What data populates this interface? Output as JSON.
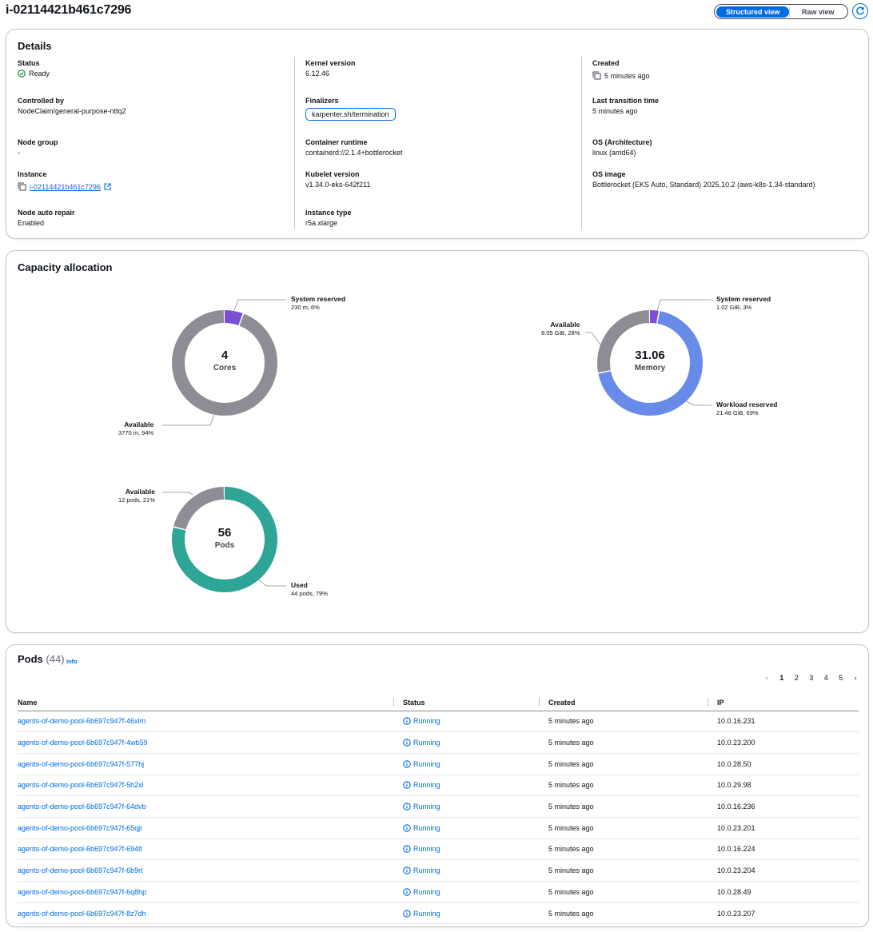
{
  "header": {
    "title": "i-02114421b461c7296",
    "structured_view_label": "Structured view",
    "raw_view_label": "Raw view",
    "refresh_icon": "refresh-icon"
  },
  "details": {
    "title": "Details",
    "status_label": "Status",
    "status_value": "Ready",
    "kernel_label": "Kernel version",
    "kernel_value": "6.12.46",
    "created_label": "Created",
    "created_value": "5 minutes ago",
    "controlled_label": "Controlled by",
    "controlled_value": "NodeClaim/general-purpose-nttq2",
    "finalizers_label": "Finalizers",
    "finalizers_value": "karpenter.sh/termination",
    "last_transition_label": "Last transition time",
    "last_transition_value": "5 minutes ago",
    "node_group_label": "Node group",
    "node_group_value": "-",
    "runtime_label": "Container runtime",
    "runtime_value": "containerd://2.1.4+bottlerocket",
    "os_arch_label": "OS (Architecture)",
    "os_arch_value": "linux (amd64)",
    "instance_label": "Instance",
    "instance_value": "i-02114421b461c7296",
    "kubelet_label": "Kubelet version",
    "kubelet_value": "v1.34.0-eks-642f211",
    "os_image_label": "OS image",
    "os_image_value": "Bottlerocket (EKS Auto, Standard) 2025.10.2 (aws-k8s-1.34-standard)",
    "auto_repair_label": "Node auto repair",
    "auto_repair_value": "Enabled",
    "instance_type_label": "Instance type",
    "instance_type_value": "r5a.xlarge"
  },
  "capacity": {
    "title": "Capacity allocation",
    "cpu": {
      "center_value": "4",
      "center_unit": "Cores",
      "segments": [
        {
          "name": "System reserved",
          "detail": "230 m, 6%",
          "fraction": 0.06,
          "color": "#7d4fd6"
        },
        {
          "name": "Available",
          "detail": "3770 m, 94%",
          "fraction": 0.94,
          "color": "#8d8d95"
        }
      ]
    },
    "memory": {
      "center_value": "31.06",
      "center_unit": "Memory",
      "segments": [
        {
          "name": "System reserved",
          "detail": "1.02 GiB, 3%",
          "fraction": 0.03,
          "color": "#7d4fd6"
        },
        {
          "name": "Workload reserved",
          "detail": "21.48 GiB, 69%",
          "fraction": 0.69,
          "color": "#688ae8"
        },
        {
          "name": "Available",
          "detail": "8.55 GiB, 28%",
          "fraction": 0.28,
          "color": "#8d8d95"
        }
      ]
    },
    "pods": {
      "center_value": "56",
      "center_unit": "Pods",
      "segments": [
        {
          "name": "Used",
          "detail": "44 pods, 79%",
          "fraction": 0.79,
          "color": "#2ea597"
        },
        {
          "name": "Available",
          "detail": "12 pods, 21%",
          "fraction": 0.21,
          "color": "#8d8d95"
        }
      ]
    }
  },
  "pods": {
    "title": "Pods",
    "count": "(44)",
    "info_label": "Info",
    "pages": [
      "1",
      "2",
      "3",
      "4",
      "5"
    ],
    "current_page": "1",
    "columns": [
      "Name",
      "Status",
      "Created",
      "IP"
    ],
    "rows": [
      {
        "name": "agents-of-demo-pool-6b697c947f-46xlm",
        "status": "Running",
        "created": "5 minutes ago",
        "ip": "10.0.16.231"
      },
      {
        "name": "agents-of-demo-pool-6b697c947f-4wb59",
        "status": "Running",
        "created": "5 minutes ago",
        "ip": "10.0.23.200"
      },
      {
        "name": "agents-of-demo-pool-6b697c947f-577hj",
        "status": "Running",
        "created": "5 minutes ago",
        "ip": "10.0.28.50"
      },
      {
        "name": "agents-of-demo-pool-6b697c947f-5h2xl",
        "status": "Running",
        "created": "5 minutes ago",
        "ip": "10.0.29.98"
      },
      {
        "name": "agents-of-demo-pool-6b697c947f-64dvb",
        "status": "Running",
        "created": "5 minutes ago",
        "ip": "10.0.16.236"
      },
      {
        "name": "agents-of-demo-pool-6b697c947f-65qjr",
        "status": "Running",
        "created": "5 minutes ago",
        "ip": "10.0.23.201"
      },
      {
        "name": "agents-of-demo-pool-6b697c947f-694lt",
        "status": "Running",
        "created": "5 minutes ago",
        "ip": "10.0.16.224"
      },
      {
        "name": "agents-of-demo-pool-6b697c947f-6b9rt",
        "status": "Running",
        "created": "5 minutes ago",
        "ip": "10.0.23.204"
      },
      {
        "name": "agents-of-demo-pool-6b697c947f-6q8hp",
        "status": "Running",
        "created": "5 minutes ago",
        "ip": "10.0.28.49"
      },
      {
        "name": "agents-of-demo-pool-6b697c947f-8z7dh",
        "status": "Running",
        "created": "5 minutes ago",
        "ip": "10.0.23.207"
      }
    ]
  }
}
